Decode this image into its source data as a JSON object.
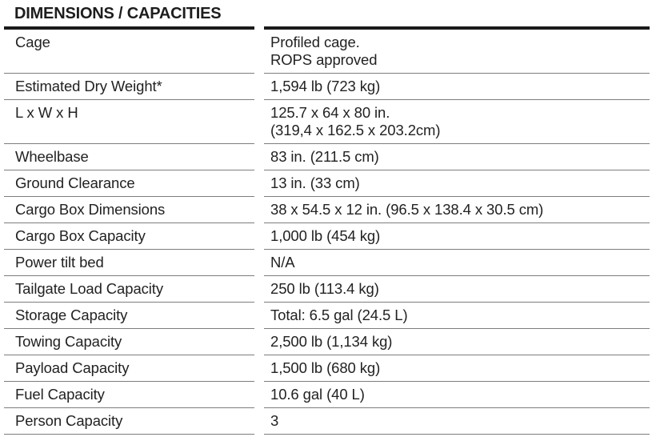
{
  "title": "DIMENSIONS / CAPACITIES",
  "colors": {
    "background": "#ffffff",
    "text": "#222222",
    "heavy_rule": "#1a1a1a",
    "light_rule": "#7d7d7d"
  },
  "table": {
    "rows": [
      {
        "label": "Cage",
        "value": "Profiled cage.\nROPS approved"
      },
      {
        "label": "Estimated Dry Weight*",
        "value": "1,594 lb (723 kg)"
      },
      {
        "label": "L x W x H",
        "value": "125.7 x 64 x 80 in.\n(319,4 x 162.5 x 203.2cm)"
      },
      {
        "label": "Wheelbase",
        "value": "83 in. (211.5 cm)"
      },
      {
        "label": "Ground Clearance",
        "value": "13 in. (33 cm)"
      },
      {
        "label": "Cargo Box Dimensions",
        "value": "38 x 54.5 x 12 in. (96.5 x 138.4 x 30.5 cm)"
      },
      {
        "label": "Cargo Box Capacity",
        "value": "1,000 lb (454 kg)"
      },
      {
        "label": "Power tilt bed",
        "value": "N/A"
      },
      {
        "label": "Tailgate Load Capacity",
        "value": "250 lb (113.4 kg)"
      },
      {
        "label": "Storage Capacity",
        "value": "Total: 6.5 gal (24.5 L)"
      },
      {
        "label": "Towing Capacity",
        "value": "2,500 lb (1,134 kg)"
      },
      {
        "label": "Payload Capacity",
        "value": "1,500 lb (680 kg)"
      },
      {
        "label": "Fuel Capacity",
        "value": "10.6 gal (40 L)"
      },
      {
        "label": "Person Capacity",
        "value": "3"
      }
    ]
  }
}
